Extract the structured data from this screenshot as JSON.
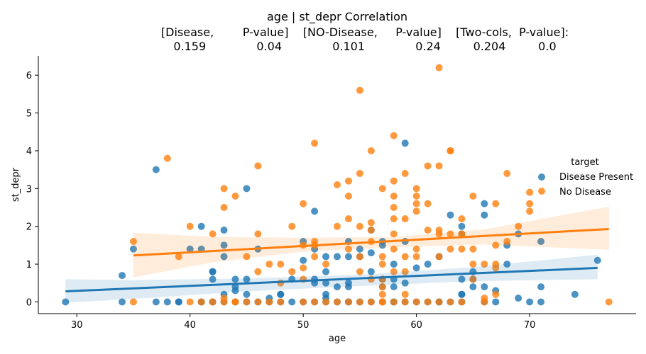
{
  "chart_data": {
    "type": "scatter",
    "title_lines": [
      "age | st_depr    Correlation",
      "[Disease,        P-value]    [NO-Disease,     P-value]    [Two-cols,  P-value]:",
      "0.159              0.04              0.101              0.24         0.204         0.0"
    ],
    "xlabel": "age",
    "ylabel": "st_depr",
    "xlim": [
      26.6,
      79.4
    ],
    "ylim": [
      -0.31,
      6.51
    ],
    "xticks": [
      30,
      40,
      50,
      60,
      70
    ],
    "yticks": [
      0,
      1,
      2,
      3,
      4,
      5,
      6
    ],
    "grid": false,
    "legend": {
      "title": "target",
      "placement": "right",
      "entries": [
        "Disease Present",
        "No Disease"
      ]
    },
    "series": [
      {
        "name": "Disease Present",
        "color": "#1f77b4",
        "band_color": "#1f77b4",
        "fit": {
          "x": [
            29,
            76
          ],
          "y": [
            0.28,
            0.9
          ]
        },
        "ci": {
          "x": [
            29,
            35,
            45,
            55,
            65,
            76
          ],
          "lo": [
            -0.02,
            0.08,
            0.28,
            0.42,
            0.55,
            0.6
          ],
          "hi": [
            0.6,
            0.58,
            0.62,
            0.72,
            0.92,
            1.25
          ]
        },
        "points": [
          [
            29,
            0
          ],
          [
            34,
            0.7
          ],
          [
            34,
            0
          ],
          [
            35,
            1.4
          ],
          [
            37,
            3.5
          ],
          [
            37,
            0
          ],
          [
            38,
            0
          ],
          [
            39,
            0
          ],
          [
            39,
            0
          ],
          [
            40,
            1.4
          ],
          [
            41,
            2.0
          ],
          [
            41,
            1.4
          ],
          [
            41,
            0
          ],
          [
            41,
            0
          ],
          [
            42,
            0.8
          ],
          [
            42,
            0.6
          ],
          [
            42,
            0.8
          ],
          [
            42,
            0
          ],
          [
            42,
            0
          ],
          [
            43,
            1.9
          ],
          [
            43,
            1.5
          ],
          [
            43,
            1.2
          ],
          [
            43,
            0.2
          ],
          [
            43,
            0
          ],
          [
            44,
            0.6
          ],
          [
            44,
            0.4
          ],
          [
            44,
            0.3
          ],
          [
            44,
            0
          ],
          [
            44,
            0
          ],
          [
            45,
            3.0
          ],
          [
            45,
            0.6
          ],
          [
            45,
            0.2
          ],
          [
            45,
            0
          ],
          [
            46,
            1.4
          ],
          [
            46,
            0
          ],
          [
            47,
            0.1
          ],
          [
            47,
            0
          ],
          [
            48,
            0.2
          ],
          [
            48,
            0.2
          ],
          [
            48,
            0
          ],
          [
            49,
            0.6
          ],
          [
            49,
            0
          ],
          [
            50,
            1.6
          ],
          [
            50,
            1.1
          ],
          [
            50,
            0
          ],
          [
            51,
            2.4
          ],
          [
            51,
            1.4
          ],
          [
            51,
            0.6
          ],
          [
            51,
            0.5
          ],
          [
            51,
            0
          ],
          [
            52,
            1.2
          ],
          [
            52,
            0.8
          ],
          [
            52,
            0.5
          ],
          [
            52,
            0.2
          ],
          [
            52,
            0.1
          ],
          [
            52,
            0
          ],
          [
            53,
            1.2
          ],
          [
            53,
            0.4
          ],
          [
            53,
            0
          ],
          [
            54,
            1.6
          ],
          [
            54,
            1.2
          ],
          [
            54,
            0.5
          ],
          [
            54,
            0.4
          ],
          [
            54,
            0
          ],
          [
            54,
            0
          ],
          [
            55,
            1.4
          ],
          [
            55,
            1.2
          ],
          [
            55,
            0
          ],
          [
            56,
            1.9
          ],
          [
            56,
            1.3
          ],
          [
            56,
            0.8
          ],
          [
            56,
            0
          ],
          [
            57,
            1.6
          ],
          [
            57,
            1.5
          ],
          [
            57,
            0.6
          ],
          [
            57,
            0.4
          ],
          [
            57,
            0
          ],
          [
            58,
            1.0
          ],
          [
            58,
            0.6
          ],
          [
            58,
            0.4
          ],
          [
            58,
            0
          ],
          [
            58,
            0
          ],
          [
            59,
            4.2
          ],
          [
            59,
            1.6
          ],
          [
            59,
            0.5
          ],
          [
            59,
            0
          ],
          [
            60,
            0.9
          ],
          [
            60,
            0
          ],
          [
            61,
            1.0
          ],
          [
            61,
            0
          ],
          [
            62,
            1.2
          ],
          [
            62,
            0
          ],
          [
            62,
            0
          ],
          [
            63,
            2.3
          ],
          [
            63,
            0
          ],
          [
            64,
            2.0
          ],
          [
            64,
            1.8
          ],
          [
            64,
            0.6
          ],
          [
            64,
            0.2
          ],
          [
            64,
            0.2
          ],
          [
            64,
            0
          ],
          [
            65,
            0.8
          ],
          [
            65,
            0.6
          ],
          [
            65,
            0.4
          ],
          [
            66,
            2.6
          ],
          [
            66,
            2.3
          ],
          [
            66,
            0.4
          ],
          [
            66,
            0
          ],
          [
            67,
            0.3
          ],
          [
            67,
            0
          ],
          [
            68,
            1.5
          ],
          [
            68,
            1.0
          ],
          [
            69,
            1.8
          ],
          [
            69,
            0.1
          ],
          [
            70,
            0
          ],
          [
            71,
            1.6
          ],
          [
            71,
            0.4
          ],
          [
            71,
            0
          ],
          [
            74,
            0.2
          ],
          [
            76,
            1.1
          ]
        ]
      },
      {
        "name": "No Disease",
        "color": "#ff7f0e",
        "band_color": "#ff7f0e",
        "fit": {
          "x": [
            35,
            77
          ],
          "y": [
            1.23,
            1.93
          ]
        },
        "ci": {
          "x": [
            35,
            42,
            50,
            58,
            66,
            77
          ],
          "lo": [
            0.65,
            1.05,
            1.33,
            1.45,
            1.52,
            1.38
          ],
          "hi": [
            1.83,
            1.72,
            1.7,
            1.72,
            1.92,
            2.52
          ]
        },
        "points": [
          [
            35,
            1.6
          ],
          [
            35,
            0
          ],
          [
            38,
            3.8
          ],
          [
            39,
            1.2
          ],
          [
            40,
            2.0
          ],
          [
            40,
            0
          ],
          [
            41,
            0
          ],
          [
            42,
            1.8
          ],
          [
            42,
            0
          ],
          [
            43,
            3.0
          ],
          [
            43,
            2.5
          ],
          [
            43,
            0.1
          ],
          [
            43,
            0
          ],
          [
            44,
            2.8
          ],
          [
            44,
            0
          ],
          [
            44,
            0
          ],
          [
            45,
            1.2
          ],
          [
            45,
            0
          ],
          [
            46,
            3.6
          ],
          [
            46,
            1.8
          ],
          [
            46,
            0.8
          ],
          [
            46,
            0
          ],
          [
            47,
            1.0
          ],
          [
            47,
            0
          ],
          [
            48,
            1.0
          ],
          [
            48,
            0.5
          ],
          [
            48,
            0
          ],
          [
            49,
            2.0
          ],
          [
            49,
            0.8
          ],
          [
            50,
            2.6
          ],
          [
            50,
            1.5
          ],
          [
            50,
            0.9
          ],
          [
            50,
            0.6
          ],
          [
            50,
            0
          ],
          [
            51,
            4.2
          ],
          [
            51,
            1.6
          ],
          [
            51,
            1.5
          ],
          [
            51,
            1.2
          ],
          [
            51,
            0
          ],
          [
            52,
            1.0
          ],
          [
            52,
            0
          ],
          [
            53,
            3.1
          ],
          [
            53,
            2.0
          ],
          [
            53,
            0
          ],
          [
            54,
            3.2
          ],
          [
            54,
            2.8
          ],
          [
            54,
            2.2
          ],
          [
            54,
            1.4
          ],
          [
            54,
            0
          ],
          [
            55,
            5.6
          ],
          [
            55,
            3.4
          ],
          [
            55,
            2.0
          ],
          [
            55,
            1.2
          ],
          [
            55,
            0.8
          ],
          [
            55,
            0
          ],
          [
            56,
            4.0
          ],
          [
            56,
            2.1
          ],
          [
            56,
            1.9
          ],
          [
            56,
            1.6
          ],
          [
            56,
            0.6
          ],
          [
            56,
            0
          ],
          [
            57,
            3.0
          ],
          [
            57,
            1.2
          ],
          [
            57,
            1.0
          ],
          [
            57,
            0.6
          ],
          [
            57,
            0.4
          ],
          [
            57,
            0.2
          ],
          [
            57,
            0
          ],
          [
            57,
            0
          ],
          [
            58,
            4.4
          ],
          [
            58,
            3.2
          ],
          [
            58,
            2.8
          ],
          [
            58,
            2.5
          ],
          [
            58,
            2.2
          ],
          [
            58,
            1.8
          ],
          [
            58,
            1.4
          ],
          [
            58,
            0.8
          ],
          [
            58,
            0
          ],
          [
            59,
            3.4
          ],
          [
            59,
            2.2
          ],
          [
            59,
            1.2
          ],
          [
            59,
            0.8
          ],
          [
            59,
            0.2
          ],
          [
            59,
            0
          ],
          [
            60,
            3.0
          ],
          [
            60,
            2.8
          ],
          [
            60,
            2.6
          ],
          [
            60,
            2.4
          ],
          [
            60,
            1.4
          ],
          [
            60,
            1.2
          ],
          [
            60,
            0
          ],
          [
            61,
            3.6
          ],
          [
            61,
            2.6
          ],
          [
            61,
            1.9
          ],
          [
            61,
            0
          ],
          [
            62,
            6.2
          ],
          [
            62,
            3.6
          ],
          [
            62,
            1.9
          ],
          [
            62,
            1.8
          ],
          [
            62,
            1.2
          ],
          [
            62,
            0
          ],
          [
            63,
            4.0
          ],
          [
            63,
            4.0
          ],
          [
            63,
            1.8
          ],
          [
            63,
            1.4
          ],
          [
            63,
            0
          ],
          [
            64,
            2.2
          ],
          [
            64,
            1.8
          ],
          [
            64,
            1.4
          ],
          [
            64,
            0
          ],
          [
            65,
            2.8
          ],
          [
            65,
            1.4
          ],
          [
            65,
            1.0
          ],
          [
            65,
            0.6
          ],
          [
            66,
            1.0
          ],
          [
            66,
            0.1
          ],
          [
            66,
            0
          ],
          [
            67,
            2.6
          ],
          [
            67,
            1.5
          ],
          [
            67,
            1.0
          ],
          [
            67,
            0.9
          ],
          [
            67,
            0.2
          ],
          [
            68,
            3.4
          ],
          [
            68,
            1.6
          ],
          [
            69,
            2.0
          ],
          [
            70,
            2.9
          ],
          [
            70,
            2.6
          ],
          [
            70,
            2.4
          ],
          [
            77,
            0
          ]
        ]
      }
    ]
  }
}
